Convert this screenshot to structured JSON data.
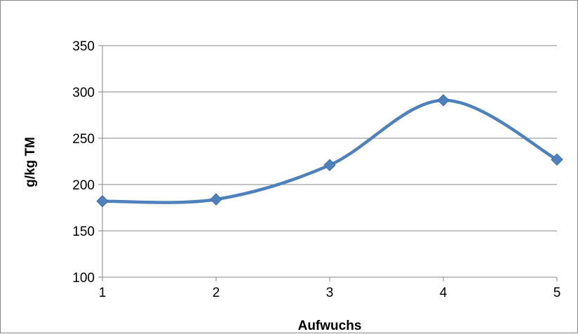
{
  "chart_data": {
    "type": "line",
    "smooth": true,
    "x": [
      1,
      2,
      3,
      4,
      5
    ],
    "series": [
      {
        "values": [
          182,
          184,
          221,
          291,
          227
        ]
      }
    ],
    "xlabel": "Aufwuchs",
    "ylabel": "g/kg TM",
    "xlim": [
      1,
      5
    ],
    "ylim": [
      100,
      350
    ],
    "yticks": [
      100,
      150,
      200,
      250,
      300,
      350
    ],
    "xticks": [
      1,
      2,
      3,
      4,
      5
    ],
    "grid": "horizontal",
    "legend": "none",
    "colors": {
      "series": "#4F81BD",
      "grid": "#868686",
      "axis": "#868686"
    },
    "marker": "diamond"
  }
}
